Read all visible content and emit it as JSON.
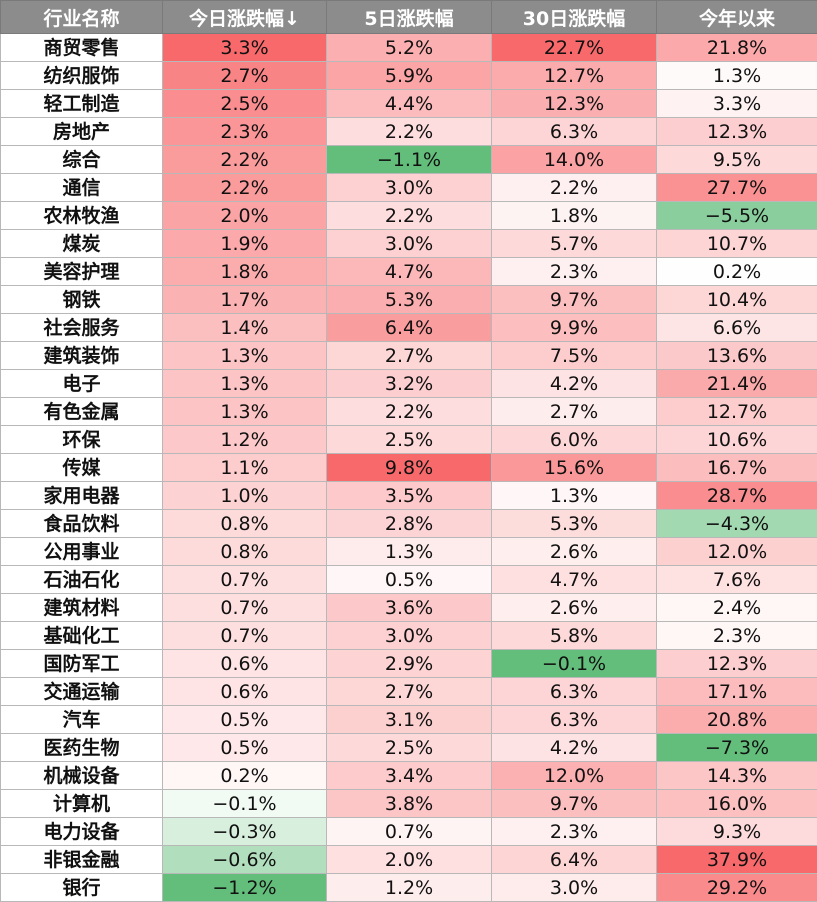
{
  "table": {
    "headers": [
      "行业名称",
      "今日涨跌幅↓",
      "5日涨跌幅",
      "30日涨跌幅",
      "今年以来"
    ],
    "rows": [
      {
        "name": "商贸零售",
        "values": [
          "3.3%",
          "5.2%",
          "22.7%",
          "21.8%"
        ]
      },
      {
        "name": "纺织服饰",
        "values": [
          "2.7%",
          "5.9%",
          "12.7%",
          "1.3%"
        ]
      },
      {
        "name": "轻工制造",
        "values": [
          "2.5%",
          "4.4%",
          "12.3%",
          "3.3%"
        ]
      },
      {
        "name": "房地产",
        "values": [
          "2.3%",
          "2.2%",
          "6.3%",
          "12.3%"
        ]
      },
      {
        "name": "综合",
        "values": [
          "2.2%",
          "−1.1%",
          "14.0%",
          "9.5%"
        ]
      },
      {
        "name": "通信",
        "values": [
          "2.2%",
          "3.0%",
          "2.2%",
          "27.7%"
        ]
      },
      {
        "name": "农林牧渔",
        "values": [
          "2.0%",
          "2.2%",
          "1.8%",
          "−5.5%"
        ]
      },
      {
        "name": "煤炭",
        "values": [
          "1.9%",
          "3.0%",
          "5.7%",
          "10.7%"
        ]
      },
      {
        "name": "美容护理",
        "values": [
          "1.8%",
          "4.7%",
          "2.3%",
          "0.2%"
        ]
      },
      {
        "name": "钢铁",
        "values": [
          "1.7%",
          "5.3%",
          "9.7%",
          "10.4%"
        ]
      },
      {
        "name": "社会服务",
        "values": [
          "1.4%",
          "6.4%",
          "9.9%",
          "6.6%"
        ]
      },
      {
        "name": "建筑装饰",
        "values": [
          "1.3%",
          "2.7%",
          "7.5%",
          "13.6%"
        ]
      },
      {
        "name": "电子",
        "values": [
          "1.3%",
          "3.2%",
          "4.2%",
          "21.4%"
        ]
      },
      {
        "name": "有色金属",
        "values": [
          "1.3%",
          "2.2%",
          "2.7%",
          "12.7%"
        ]
      },
      {
        "name": "环保",
        "values": [
          "1.2%",
          "2.5%",
          "6.0%",
          "10.6%"
        ]
      },
      {
        "name": "传媒",
        "values": [
          "1.1%",
          "9.8%",
          "15.6%",
          "16.7%"
        ]
      },
      {
        "name": "家用电器",
        "values": [
          "1.0%",
          "3.5%",
          "1.3%",
          "28.7%"
        ]
      },
      {
        "name": "食品饮料",
        "values": [
          "0.8%",
          "2.8%",
          "5.3%",
          "−4.3%"
        ]
      },
      {
        "name": "公用事业",
        "values": [
          "0.8%",
          "1.3%",
          "2.6%",
          "12.0%"
        ]
      },
      {
        "name": "石油石化",
        "values": [
          "0.7%",
          "0.5%",
          "4.7%",
          "7.6%"
        ]
      },
      {
        "name": "建筑材料",
        "values": [
          "0.7%",
          "3.6%",
          "2.6%",
          "2.4%"
        ]
      },
      {
        "name": "基础化工",
        "values": [
          "0.7%",
          "3.0%",
          "5.8%",
          "2.3%"
        ]
      },
      {
        "name": "国防军工",
        "values": [
          "0.6%",
          "2.9%",
          "−0.1%",
          "12.3%"
        ]
      },
      {
        "name": "交通运输",
        "values": [
          "0.6%",
          "2.7%",
          "6.3%",
          "17.1%"
        ]
      },
      {
        "name": "汽车",
        "values": [
          "0.5%",
          "3.1%",
          "6.3%",
          "20.8%"
        ]
      },
      {
        "name": "医药生物",
        "values": [
          "0.5%",
          "2.5%",
          "4.2%",
          "−7.3%"
        ]
      },
      {
        "name": "机械设备",
        "values": [
          "0.2%",
          "3.4%",
          "12.0%",
          "14.3%"
        ]
      },
      {
        "name": "计算机",
        "values": [
          "−0.1%",
          "3.8%",
          "9.7%",
          "16.0%"
        ]
      },
      {
        "name": "电力设备",
        "values": [
          "−0.3%",
          "0.7%",
          "2.3%",
          "9.3%"
        ]
      },
      {
        "name": "非银金融",
        "values": [
          "−0.6%",
          "2.0%",
          "6.4%",
          "37.9%"
        ]
      },
      {
        "name": "银行",
        "values": [
          "−1.2%",
          "1.2%",
          "3.0%",
          "29.2%"
        ]
      }
    ]
  },
  "colors": {
    "positive": "#f8696b",
    "negative": "#63be7b",
    "neutral": "#ffffff",
    "header_bg": "#8c8c8c",
    "header_text": "#ffffff"
  }
}
